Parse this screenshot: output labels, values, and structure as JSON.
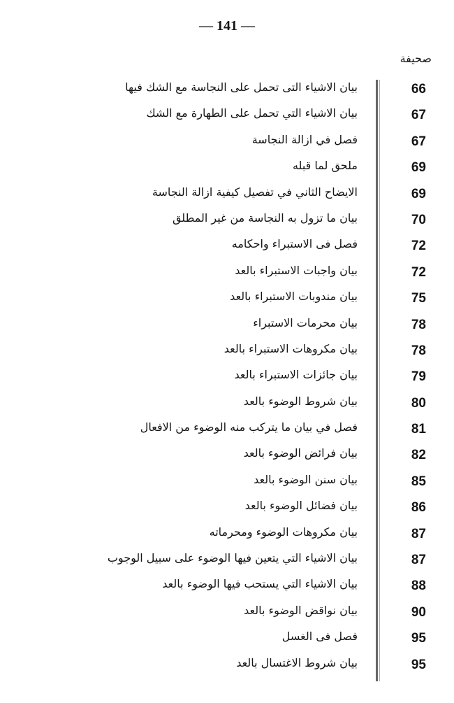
{
  "page_number": "— 141 —",
  "column_header": "صحيفة",
  "entries": [
    {
      "page": "66",
      "title": "بيان الاشياء التى تحمل على النجاسة مع الشك فيها"
    },
    {
      "page": "67",
      "title": "بيان الاشياء التي تحمل على الطهارة مع الشك"
    },
    {
      "page": "67",
      "title": "فصل في ازالة النجاسة"
    },
    {
      "page": "69",
      "title": "ملحق لما قبله"
    },
    {
      "page": "69",
      "title": "الايضاح الثاني في تفصيل كيفية ازالة النجاسة"
    },
    {
      "page": "70",
      "title": "بيان ما تزول به النجاسة من غير المطلق"
    },
    {
      "page": "72",
      "title": "فصل فى الاستبراء واحكامه"
    },
    {
      "page": "72",
      "title": "بيان واجبات الاستبراء بالعد"
    },
    {
      "page": "75",
      "title": "بيان مندوبات الاستبراء بالعد"
    },
    {
      "page": "78",
      "title": "بيان محرمات الاستبراء"
    },
    {
      "page": "78",
      "title": "بيان مكروهات الاستبراء بالعد"
    },
    {
      "page": "79",
      "title": "بيان جائزات الاستبراء بالعد"
    },
    {
      "page": "80",
      "title": "بيان شروط الوضوء بالعد"
    },
    {
      "page": "81",
      "title": "فصل في بيان ما يتركب منه الوضوء من الافعال"
    },
    {
      "page": "82",
      "title": "بيان فرائض الوضوء بالعد"
    },
    {
      "page": "85",
      "title": "بيان سنن الوضوء بالعد"
    },
    {
      "page": "86",
      "title": "بيان فضائل الوضوء بالعد"
    },
    {
      "page": "87",
      "title": "بيان مكروهات الوضوء ومحرماته"
    },
    {
      "page": "87",
      "title": "بيان الاشياء التي يتعين فيها الوضوء على سبيل الوجوب"
    },
    {
      "page": "88",
      "title": "بيان الاشياء التي يستحب فيها الوضوء بالعد"
    },
    {
      "page": "90",
      "title": "بيان نواقض الوضوء بالعد"
    },
    {
      "page": "95",
      "title": "فصل فى الغسل"
    },
    {
      "page": "95",
      "title": "بيان شروط الاغتسال بالعد"
    }
  ]
}
